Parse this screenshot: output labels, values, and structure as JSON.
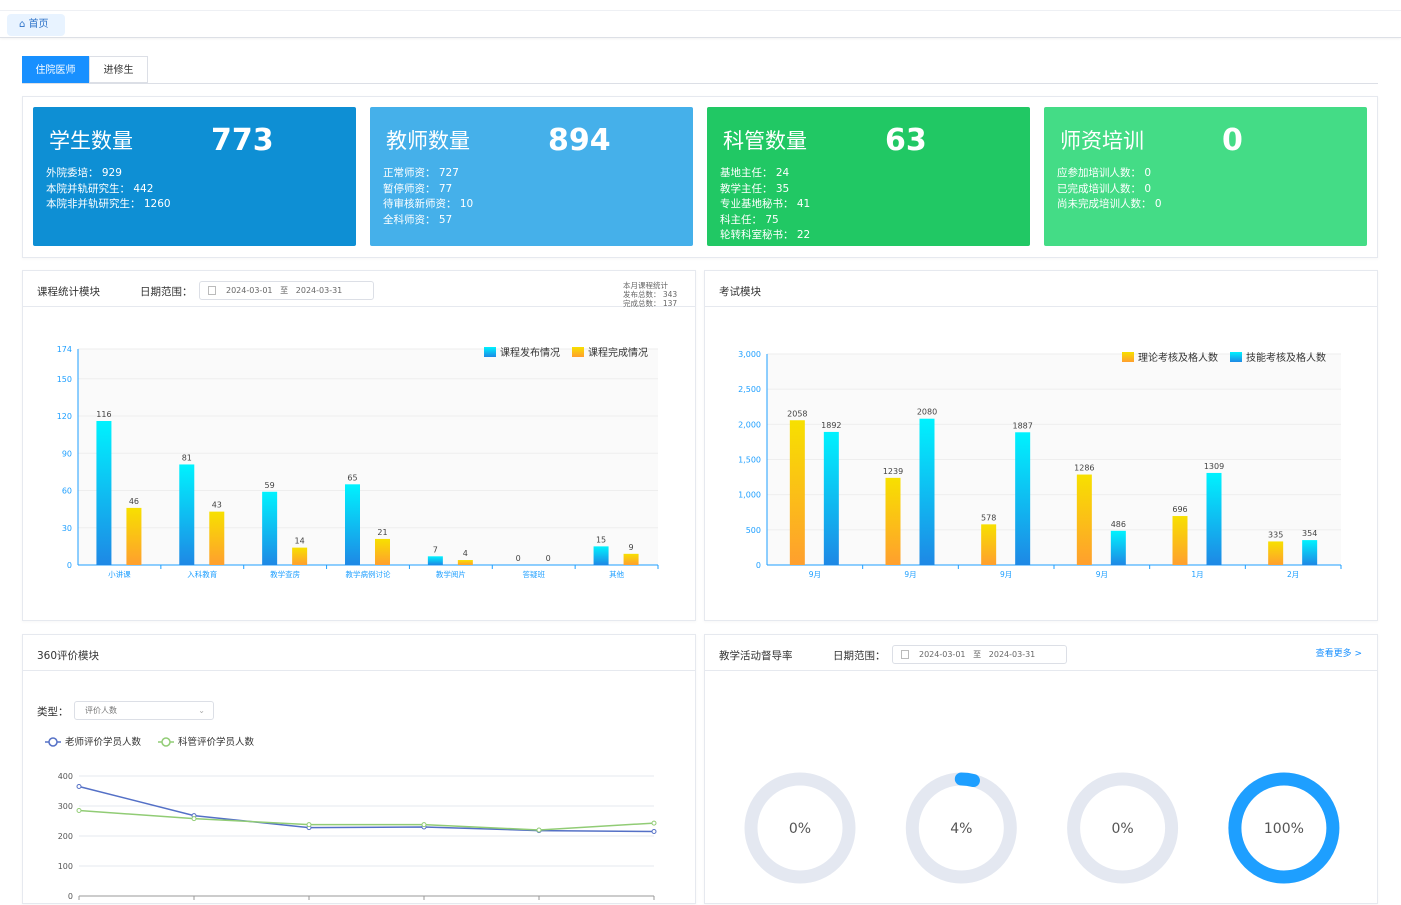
{
  "breadcrumb": {
    "home": "首页",
    "home_icon": "home-icon"
  },
  "tabs": [
    {
      "label": "住院医师",
      "active": true
    },
    {
      "label": "进修生",
      "active": false
    }
  ],
  "stats": [
    {
      "title": "学生数量",
      "value": "773",
      "color": "#0e8fd4",
      "lines": [
        "外院委培： 929",
        "本院并轨研究生： 442",
        "本院非并轨研究生： 1260"
      ]
    },
    {
      "title": "教师数量",
      "value": "894",
      "color": "#45b0ea",
      "lines": [
        "正常师资： 727",
        "暂停师资： 77",
        "待审核新师资： 10",
        "全科师资： 57"
      ]
    },
    {
      "title": "科管数量",
      "value": "63",
      "color": "#21c864",
      "lines": [
        "基地主任： 24",
        "教学主任： 35",
        "专业基地秘书： 41",
        "科主任： 75",
        "轮转科室秘书： 22"
      ]
    },
    {
      "title": "师资培训",
      "value": "0",
      "color": "#44dc86",
      "lines": [
        "应参加培训人数： 0",
        "已完成培训人数： 0",
        "尚未完成培训人数： 0"
      ]
    }
  ],
  "course": {
    "title": "课程统计模块",
    "date_label": "日期范围：",
    "start": "2024-03-01",
    "sep": "至",
    "end": "2024-03-31",
    "summary": [
      "本月课程统计",
      "发布总数： 343",
      "完成总数： 137"
    ]
  },
  "exam": {
    "title": "考试模块"
  },
  "eval": {
    "title": "360评价模块",
    "type_label": "类型：",
    "type_value": "评价人数"
  },
  "activity": {
    "title": "教学活动督导率",
    "date_label": "日期范围：",
    "start": "2024-03-01",
    "sep": "至",
    "end": "2024-03-31",
    "more": "查看更多 >"
  },
  "chart_data": [
    {
      "type": "bar",
      "yticks": [
        0,
        30,
        60,
        90,
        120,
        150,
        174
      ],
      "ylim": [
        0,
        174
      ],
      "legend": "top-right",
      "categories": [
        "小讲课",
        "入科教育",
        "教学查房",
        "教学病例讨论",
        "教学阅片",
        "答疑班",
        "其他"
      ],
      "series": [
        {
          "name": "课程发布情况",
          "values": [
            116,
            81,
            59,
            65,
            7,
            0,
            15
          ],
          "colors": [
            "#00f2fe",
            "#1e88e5"
          ]
        },
        {
          "name": "课程完成情况",
          "values": [
            46,
            43,
            14,
            21,
            4,
            0,
            9
          ],
          "colors": [
            "#f7e000",
            "#ff9f2e"
          ]
        }
      ]
    },
    {
      "type": "bar",
      "yticks": [
        0,
        500,
        1000,
        1500,
        2000,
        2500,
        3000
      ],
      "ytick_labels": [
        "0",
        "500",
        "1,000",
        "1,500",
        "2,000",
        "2,500",
        "3,000"
      ],
      "ylim": [
        0,
        3000
      ],
      "legend": "top-right",
      "categories": [
        "9月",
        "9月",
        "9月",
        "9月",
        "1月",
        "2月"
      ],
      "series": [
        {
          "name": "理论考核及格人数",
          "values": [
            2058,
            1239,
            578,
            1286,
            696,
            335
          ],
          "colors": [
            "#f7e000",
            "#ff9f2e"
          ]
        },
        {
          "name": "技能考核及格人数",
          "values": [
            1892,
            2080,
            1887,
            486,
            1309,
            354
          ],
          "colors": [
            "#00f2fe",
            "#1e88e5"
          ]
        }
      ]
    },
    {
      "type": "line",
      "yticks": [
        0,
        100,
        200,
        300,
        400
      ],
      "ylim": [
        0,
        400
      ],
      "legend": "top-left",
      "series": [
        {
          "name": "老师评价学员人数",
          "values": [
            365,
            268,
            228,
            230,
            218,
            215
          ],
          "color": "#5470c6"
        },
        {
          "name": "科管评价学员人数",
          "values": [
            285,
            258,
            238,
            238,
            220,
            243
          ],
          "color": "#91cc75"
        }
      ]
    },
    {
      "type": "pie",
      "subtype": "donut",
      "values": [
        0,
        4,
        0,
        100
      ],
      "labels": [
        "0%",
        "4%",
        "0%",
        "100%"
      ],
      "color": "#1e9fff",
      "track": "#e4e8f1"
    }
  ]
}
